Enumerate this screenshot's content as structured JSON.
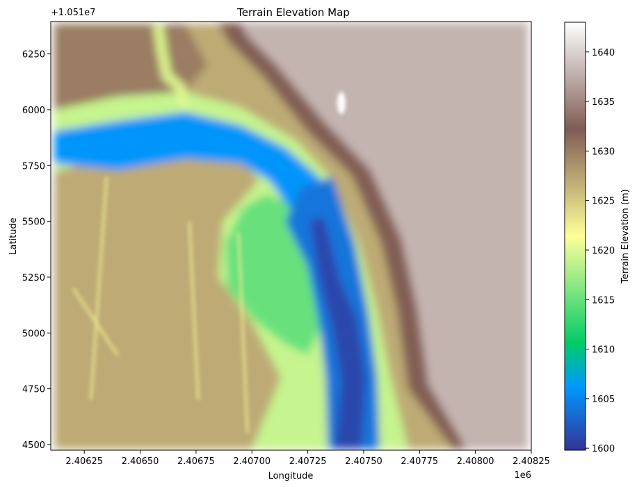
{
  "chart_data": {
    "type": "heatmap",
    "title": "Terrain Elevation Map",
    "xlabel": "Longitude",
    "ylabel": "Latitude",
    "x_offset_text": "1e6",
    "y_offset_text": "+1.051e7",
    "xlim": [
      2406100,
      2408250
    ],
    "ylim": [
      4475,
      6395
    ],
    "x_ticks": [
      {
        "value": 2406250,
        "label": "2.40625"
      },
      {
        "value": 2406500,
        "label": "2.40650"
      },
      {
        "value": 2406750,
        "label": "2.40675"
      },
      {
        "value": 2407000,
        "label": "2.40700"
      },
      {
        "value": 2407250,
        "label": "2.40725"
      },
      {
        "value": 2407500,
        "label": "2.40750"
      },
      {
        "value": 2407750,
        "label": "2.40775"
      },
      {
        "value": 2408000,
        "label": "2.40800"
      },
      {
        "value": 2408250,
        "label": "2.40825"
      }
    ],
    "y_ticks": [
      {
        "value": 4500,
        "label": "4500"
      },
      {
        "value": 4750,
        "label": "4750"
      },
      {
        "value": 5000,
        "label": "5000"
      },
      {
        "value": 5250,
        "label": "5250"
      },
      {
        "value": 5500,
        "label": "5500"
      },
      {
        "value": 5750,
        "label": "5750"
      },
      {
        "value": 6000,
        "label": "6000"
      },
      {
        "value": 6250,
        "label": "6250"
      }
    ],
    "colorbar": {
      "label": "Terrain Elevation (m)",
      "colormap": "terrain",
      "range": [
        1599.8,
        1643
      ],
      "ticks": [
        {
          "value": 1600,
          "label": "1600"
        },
        {
          "value": 1605,
          "label": "1605"
        },
        {
          "value": 1610,
          "label": "1610"
        },
        {
          "value": 1615,
          "label": "1615"
        },
        {
          "value": 1620,
          "label": "1620"
        },
        {
          "value": 1625,
          "label": "1625"
        },
        {
          "value": 1630,
          "label": "1630"
        },
        {
          "value": 1635,
          "label": "1635"
        },
        {
          "value": 1640,
          "label": "1640"
        }
      ]
    },
    "data_extent": {
      "x": [
        2406115,
        2408235
      ],
      "y": [
        4480,
        6385
      ]
    },
    "regions": {
      "west_plain": {
        "elevation": 1627
      },
      "east_plateau": {
        "elevation": 1638
      },
      "escarpment": {
        "elevation": 1632
      },
      "river_upper": {
        "elevation": 1606
      },
      "river_lower_channel": {
        "elevation": 1601
      },
      "river_lower_shallow": {
        "elevation": 1604
      },
      "inner_bank": {
        "elevation": 1615
      },
      "banks": {
        "elevation": 1619
      },
      "north_ravine": {
        "elevation": 1620
      },
      "plain_highlights": {
        "elevation": 1623
      },
      "plateau_spot": {
        "elevation": 1643
      }
    }
  }
}
